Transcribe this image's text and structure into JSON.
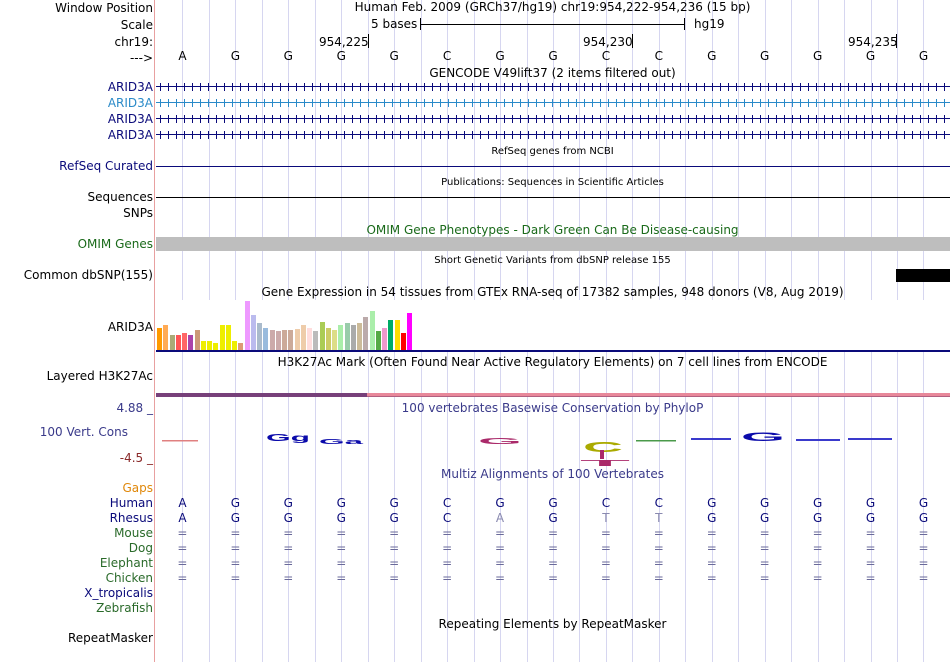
{
  "header": {
    "labels": {
      "window_position": "Window Position",
      "scale": "Scale",
      "chrom": "chr19:",
      "arrow": "--->"
    },
    "position": "Human Feb. 2009 (GRCh37/hg19)   chr19:954,222-954,236 (15 bp)",
    "scale_text": "5 bases",
    "assembly": "hg19",
    "ticks": [
      "954,225",
      "954,230",
      "954,235"
    ],
    "bases": [
      "A",
      "G",
      "G",
      "G",
      "G",
      "C",
      "G",
      "G",
      "C",
      "C",
      "G",
      "G",
      "G",
      "G",
      "G"
    ]
  },
  "gencode": {
    "title": "GENCODE V49lift37 (2 items filtered out)",
    "items": [
      {
        "label": "ARID3A",
        "color": "#0a0a7a"
      },
      {
        "label": "ARID3A",
        "color": "#2a8ac8"
      },
      {
        "label": "ARID3A",
        "color": "#0a0a7a"
      },
      {
        "label": "ARID3A",
        "color": "#0a0a7a"
      }
    ]
  },
  "refseq": {
    "title": "RefSeq genes from NCBI",
    "label": "RefSeq Curated"
  },
  "publications": {
    "title": "Publications: Sequences in Scientific Articles",
    "label1": "Sequences",
    "label2": "SNPs"
  },
  "omim": {
    "title": "OMIM Gene Phenotypes - Dark Green Can Be Disease-causing",
    "label": "OMIM Genes"
  },
  "dbsnp": {
    "title": "Short Genetic Variants from dbSNP release 155",
    "label": "Common dbSNP(155)"
  },
  "gtex": {
    "title": "Gene Expression in 54 tissues from GTEx RNA-seq of 17382 samples, 948 donors (V8, Aug 2019)",
    "label": "ARID3A",
    "colors": [
      "#ff9900",
      "#ffaa55",
      "#aaaa77",
      "#ff5555",
      "#ff6666",
      "#aa44aa",
      "#cc9977",
      "#eeee00",
      "#eeee00",
      "#eeee00",
      "#eeee00",
      "#eeee00",
      "#eeee00",
      "#dd9977",
      "#ee99ff",
      "#bbbbee",
      "#aabbcc",
      "#99bbdd",
      "#ccaaaa",
      "#ccaaaa",
      "#ccaa99",
      "#ccaa99",
      "#eeccaa",
      "#eeccaa",
      "#ffdddd",
      "#bbbbbb",
      "#aacc55",
      "#cccc66",
      "#dddd88",
      "#aaeeaa",
      "#99ccaa",
      "#aaaaaa",
      "#ccbb99",
      "#bbaaaa",
      "#aaeeaa",
      "#55aa44",
      "#ee99cc",
      "#00aa66",
      "#ffdd00",
      "#ff0000",
      "#ff00ff"
    ],
    "values": [
      0.45,
      0.5,
      0.3,
      0.3,
      0.35,
      0.3,
      0.4,
      0.18,
      0.18,
      0.15,
      0.52,
      0.52,
      0.18,
      0.15,
      1.0,
      0.72,
      0.55,
      0.45,
      0.4,
      0.38,
      0.4,
      0.4,
      0.42,
      0.5,
      0.45,
      0.38,
      0.58,
      0.45,
      0.4,
      0.5,
      0.55,
      0.5,
      0.55,
      0.68,
      0.8,
      0.38,
      0.45,
      0.62,
      0.62,
      0.35,
      0.75
    ]
  },
  "h3k27ac": {
    "title": "H3K27Ac Mark (Often Found Near Active Regulatory Elements) on 7 cell lines from ENCODE",
    "label": "Layered H3K27Ac"
  },
  "conservation": {
    "title": "100 vertebrates Basewise Conservation by PhyloP",
    "label": "100 Vert. Cons",
    "ymax": "4.88 _",
    "ymin": "-4.5 _"
  },
  "multiz": {
    "title": "Multiz Alignments of 100 Vertebrates",
    "gaps_label": "Gaps",
    "species": [
      {
        "name": "Human",
        "color": "#0a0a7a",
        "seq": [
          "A",
          "G",
          "G",
          "G",
          "G",
          "C",
          "G",
          "G",
          "C",
          "C",
          "G",
          "G",
          "G",
          "G",
          "G"
        ]
      },
      {
        "name": "Rhesus",
        "color": "#0a0a7a",
        "seq": [
          "A",
          "G",
          "G",
          "G",
          "G",
          "C",
          "A",
          "G",
          "T",
          "T",
          "G",
          "G",
          "G",
          "G",
          "G"
        ]
      },
      {
        "name": "Mouse",
        "color": "#2a6a2a",
        "seq": [
          "=",
          "=",
          "=",
          "=",
          "=",
          "=",
          "=",
          "=",
          "=",
          "=",
          "=",
          "=",
          "=",
          "=",
          "="
        ]
      },
      {
        "name": "Dog",
        "color": "#2a6a2a",
        "seq": [
          "=",
          "=",
          "=",
          "=",
          "=",
          "=",
          "=",
          "=",
          "=",
          "=",
          "=",
          "=",
          "=",
          "=",
          "="
        ]
      },
      {
        "name": "Elephant",
        "color": "#2a6a2a",
        "seq": [
          "=",
          "=",
          "=",
          "=",
          "=",
          "=",
          "=",
          "=",
          "=",
          "=",
          "=",
          "=",
          "=",
          "=",
          "="
        ]
      },
      {
        "name": "Chicken",
        "color": "#2a6a2a",
        "seq": [
          "=",
          "=",
          "=",
          "=",
          "=",
          "=",
          "=",
          "=",
          "=",
          "=",
          "=",
          "=",
          "=",
          "=",
          "="
        ]
      },
      {
        "name": "X_tropicalis",
        "color": "#0a0a7a",
        "seq": []
      },
      {
        "name": "Zebrafish",
        "color": "#2a6a2a",
        "seq": []
      }
    ]
  },
  "repeatmasker": {
    "title": "Repeating Elements by RepeatMasker",
    "label": "RepeatMasker"
  }
}
